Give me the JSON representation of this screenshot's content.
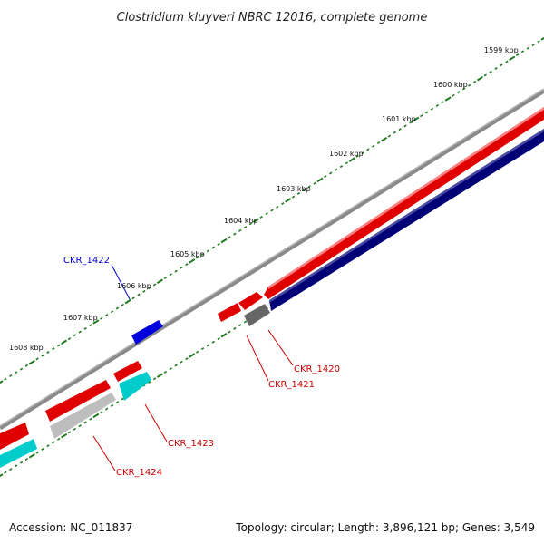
{
  "title": "Clostridium kluyveri NBRC 12016, complete genome",
  "footer": {
    "accession": "Accession: NC_011837",
    "summary": "Topology: circular; Length: 3,896,121 bp; Genes: 3,549"
  },
  "ticks": [
    {
      "label": "1599 kbp"
    },
    {
      "label": "1600 kbp"
    },
    {
      "label": "1601 kbp"
    },
    {
      "label": "1602 kbp"
    },
    {
      "label": "1603 kbp"
    },
    {
      "label": "1604 kbp"
    },
    {
      "label": "1605 kbp"
    },
    {
      "label": "1606 kbp"
    },
    {
      "label": "1607 kbp"
    },
    {
      "label": "1608 kbp"
    }
  ],
  "genes": [
    {
      "label": "CKR_1420",
      "color": "#cc0000"
    },
    {
      "label": "CKR_1421",
      "color": "#cc0000"
    },
    {
      "label": "CKR_1422",
      "color": "#0000cc"
    },
    {
      "label": "CKR_1423",
      "color": "#cc0000"
    },
    {
      "label": "CKR_1424",
      "color": "#cc0000"
    }
  ],
  "colors": {
    "backbone": "#8a8a8a",
    "forward_cds": "#e00000",
    "reverse_cds": "#000077",
    "tick": "#1e7a1e",
    "hypothetical": "#bdbdbd",
    "cyan": "#00cccc",
    "blue": "#0000dd",
    "dark_grey": "#666666"
  }
}
